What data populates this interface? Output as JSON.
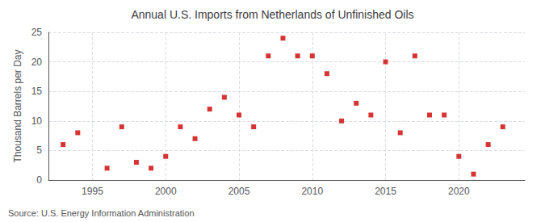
{
  "chart_data": {
    "type": "scatter",
    "title": "Annual U.S. Imports from Netherlands of Unfinished Oils",
    "ylabel": "Thousand Barrels per Day",
    "annotation": "Source: U.S. Energy Information Administration",
    "x": [
      1993,
      1994,
      1996,
      1997,
      1998,
      1999,
      2000,
      2001,
      2002,
      2003,
      2004,
      2005,
      2006,
      2007,
      2008,
      2009,
      2010,
      2011,
      2012,
      2013,
      2014,
      2015,
      2016,
      2017,
      2018,
      2019,
      2020,
      2021,
      2022,
      2023
    ],
    "values": [
      6,
      8,
      2,
      9,
      3,
      2,
      4,
      9,
      7,
      12,
      14,
      11,
      9,
      21,
      24,
      21,
      21,
      18,
      10,
      13,
      11,
      20,
      8,
      21,
      11,
      11,
      4,
      1,
      6,
      9
    ],
    "color": "#cc0000",
    "marker": "square",
    "xlim": [
      1992,
      2024.5
    ],
    "xticks": [
      1995,
      2000,
      2005,
      2010,
      2015,
      2020
    ],
    "ylim": [
      0,
      25
    ],
    "yticks": [
      0,
      5,
      10,
      15,
      20,
      25
    ],
    "grid": true
  }
}
